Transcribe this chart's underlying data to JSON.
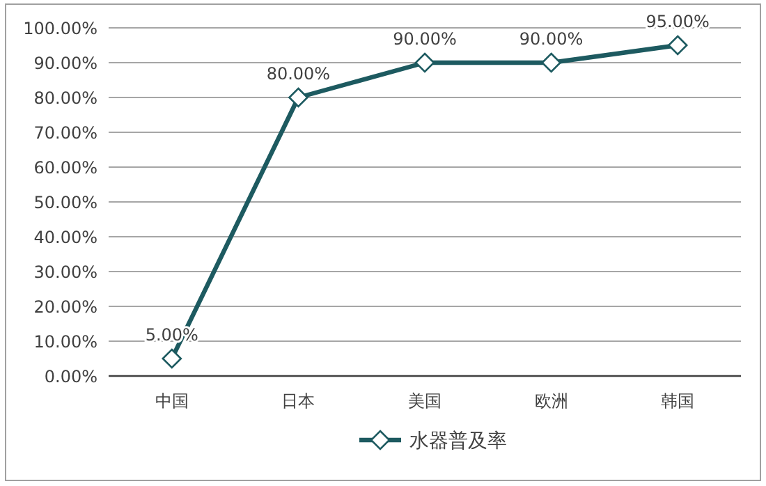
{
  "chart_data": {
    "type": "line",
    "categories": [
      "中国",
      "日本",
      "美国",
      "欧洲",
      "韩国"
    ],
    "series": [
      {
        "name": "水器普及率",
        "color": "#1d5a60",
        "values": [
          5,
          80,
          90,
          90,
          95
        ],
        "value_labels": [
          "5.00%",
          "80.00%",
          "90.00%",
          "90.00%",
          "95.00%"
        ]
      }
    ],
    "ylim": [
      0,
      100
    ],
    "yticks": [
      {
        "value": 0,
        "label": "0.00%"
      },
      {
        "value": 10,
        "label": "10.00%"
      },
      {
        "value": 20,
        "label": "20.00%"
      },
      {
        "value": 30,
        "label": "30.00%"
      },
      {
        "value": 40,
        "label": "40.00%"
      },
      {
        "value": 50,
        "label": "50.00%"
      },
      {
        "value": 60,
        "label": "60.00%"
      },
      {
        "value": 70,
        "label": "70.00%"
      },
      {
        "value": 80,
        "label": "80.00%"
      },
      {
        "value": 90,
        "label": "90.00%"
      },
      {
        "value": 100,
        "label": "100.00%"
      }
    ],
    "grid": "y",
    "legend": "bottom",
    "marker": "diamond",
    "line_style": "solid"
  }
}
